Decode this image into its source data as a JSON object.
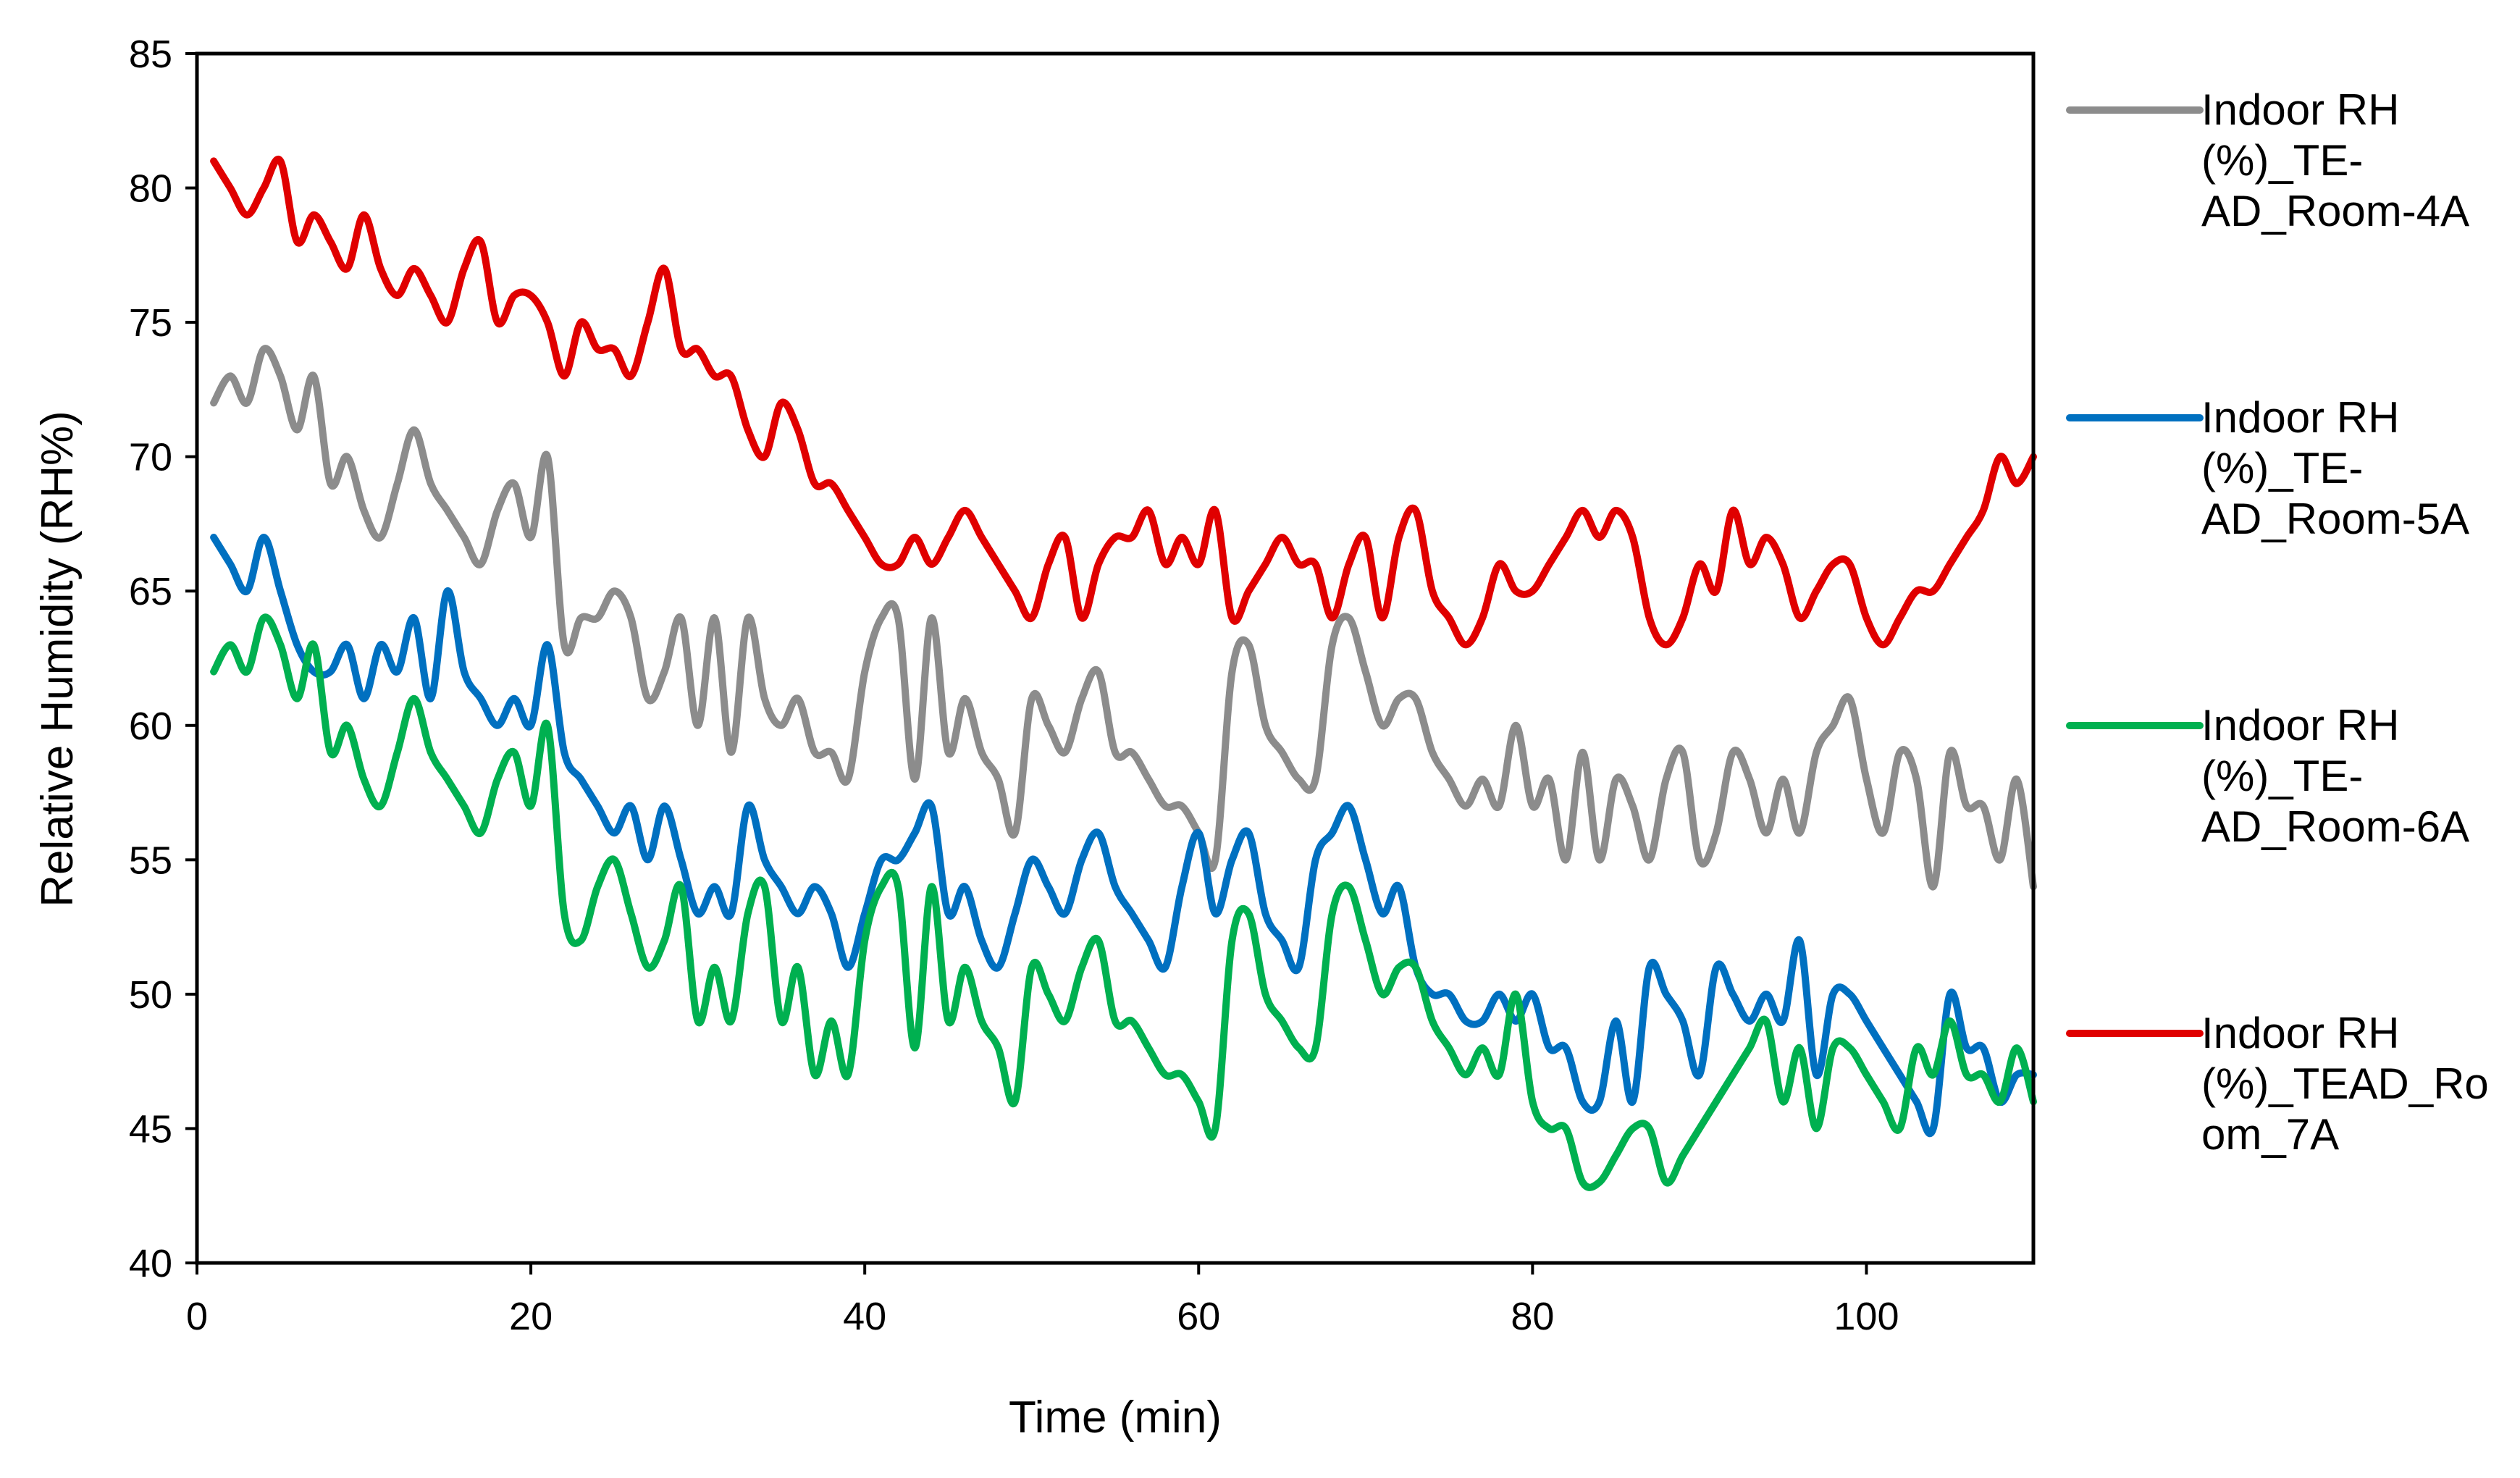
{
  "chart_data": {
    "type": "line",
    "title": "",
    "xlabel": "Time (min)",
    "ylabel": "Relative Humidity (RH%)",
    "xlim": [
      0,
      110
    ],
    "ylim": [
      40,
      85
    ],
    "x_ticks": [
      "0",
      "20",
      "40",
      "60",
      "80",
      "100"
    ],
    "y_ticks": [
      "40",
      "45",
      "50",
      "55",
      "60",
      "65",
      "70",
      "75",
      "80",
      "85"
    ],
    "grid": false,
    "legend_position": "right",
    "series": [
      {
        "name": "Indoor RH (%)_TE-AD_Room-4A",
        "legend_lines": [
          "Indoor RH",
          "(%)_TE-",
          "AD_Room-4A"
        ],
        "color": "#8c8c8c",
        "x": [
          1,
          2,
          3,
          4,
          5,
          6,
          7,
          8,
          9,
          10,
          11,
          12,
          13,
          14,
          15,
          16,
          17,
          18,
          19,
          20,
          21,
          22,
          23,
          24,
          25,
          26,
          27,
          28,
          29,
          30,
          31,
          32,
          33,
          34,
          35,
          36,
          37,
          38,
          39,
          40,
          41,
          42,
          43,
          44,
          45,
          46,
          47,
          48,
          49,
          50,
          51,
          52,
          53,
          54,
          55,
          56,
          57,
          58,
          59,
          60,
          61,
          62,
          63,
          64,
          65,
          66,
          67,
          68,
          69,
          70,
          71,
          72,
          73,
          74,
          75,
          76,
          77,
          78,
          79,
          80,
          81,
          82,
          83,
          84,
          85,
          86,
          87,
          88,
          89,
          90,
          91,
          92,
          93,
          94,
          95,
          96,
          97,
          98,
          99,
          100,
          101,
          102,
          103,
          104,
          105,
          106,
          107,
          108,
          109,
          110
        ],
        "y": [
          72,
          73,
          72,
          74,
          73,
          71,
          73,
          69,
          70,
          68,
          67,
          69,
          71,
          69,
          68,
          67,
          66,
          68,
          69,
          67,
          70,
          63,
          64,
          64,
          65,
          64,
          61,
          62,
          64,
          60,
          64,
          59,
          64,
          61,
          60,
          61,
          59,
          59,
          58,
          62,
          64,
          64,
          58,
          64,
          59,
          61,
          59,
          58,
          56,
          61,
          60,
          59,
          61,
          62,
          59,
          59,
          58,
          57,
          57,
          56,
          55,
          62,
          63,
          60,
          59,
          58,
          58,
          63,
          64,
          62,
          60,
          61,
          61,
          59,
          58,
          57,
          58,
          57,
          60,
          57,
          58,
          55,
          59,
          55,
          58,
          57,
          55,
          58,
          59,
          55,
          56,
          59,
          58,
          56,
          58,
          56,
          59,
          60,
          61,
          58,
          56,
          59,
          58,
          54,
          59,
          57,
          57,
          55,
          58,
          54
        ]
      },
      {
        "name": "Indoor RH (%)_TE-AD_Room-5A",
        "legend_lines": [
          "Indoor RH",
          "(%)_TE-",
          "AD_Room-5A"
        ],
        "color": "#0070c0",
        "x": [
          1,
          2,
          3,
          4,
          5,
          6,
          7,
          8,
          9,
          10,
          11,
          12,
          13,
          14,
          15,
          16,
          17,
          18,
          19,
          20,
          21,
          22,
          23,
          24,
          25,
          26,
          27,
          28,
          29,
          30,
          31,
          32,
          33,
          34,
          35,
          36,
          37,
          38,
          39,
          40,
          41,
          42,
          43,
          44,
          45,
          46,
          47,
          48,
          49,
          50,
          51,
          52,
          53,
          54,
          55,
          56,
          57,
          58,
          59,
          60,
          61,
          62,
          63,
          64,
          65,
          66,
          67,
          68,
          69,
          70,
          71,
          72,
          73,
          74,
          75,
          76,
          77,
          78,
          79,
          80,
          81,
          82,
          83,
          84,
          85,
          86,
          87,
          88,
          89,
          90,
          91,
          92,
          93,
          94,
          95,
          96,
          97,
          98,
          99,
          100,
          101,
          102,
          103,
          104,
          105,
          106,
          107,
          108,
          109,
          110
        ],
        "y": [
          67,
          66,
          65,
          67,
          65,
          63,
          62,
          62,
          63,
          61,
          63,
          62,
          64,
          61,
          65,
          62,
          61,
          60,
          61,
          60,
          63,
          59,
          58,
          57,
          56,
          57,
          55,
          57,
          55,
          53,
          54,
          53,
          57,
          55,
          54,
          53,
          54,
          53,
          51,
          53,
          55,
          55,
          56,
          57,
          53,
          54,
          52,
          51,
          53,
          55,
          54,
          53,
          55,
          56,
          54,
          53,
          52,
          51,
          54,
          56,
          53,
          55,
          56,
          53,
          52,
          51,
          55,
          56,
          57,
          55,
          53,
          54,
          51,
          50,
          50,
          49,
          49,
          50,
          49,
          50,
          48,
          48,
          46,
          46,
          49,
          46,
          51,
          50,
          49,
          47,
          51,
          50,
          49,
          50,
          49,
          52,
          47,
          50,
          50,
          49,
          48,
          47,
          46,
          45,
          50,
          48,
          48,
          46,
          47,
          47
        ]
      },
      {
        "name": "Indoor RH (%)_TE-AD_Room-6A",
        "legend_lines": [
          "Indoor RH",
          "(%)_TE-",
          "AD_Room-6A"
        ],
        "color": "#00b050",
        "x": [
          1,
          2,
          3,
          4,
          5,
          6,
          7,
          8,
          9,
          10,
          11,
          12,
          13,
          14,
          15,
          16,
          17,
          18,
          19,
          20,
          21,
          22,
          23,
          24,
          25,
          26,
          27,
          28,
          29,
          30,
          31,
          32,
          33,
          34,
          35,
          36,
          37,
          38,
          39,
          40,
          41,
          42,
          43,
          44,
          45,
          46,
          47,
          48,
          49,
          50,
          51,
          52,
          53,
          54,
          55,
          56,
          57,
          58,
          59,
          60,
          61,
          62,
          63,
          64,
          65,
          66,
          67,
          68,
          69,
          70,
          71,
          72,
          73,
          74,
          75,
          76,
          77,
          78,
          79,
          80,
          81,
          82,
          83,
          84,
          85,
          86,
          87,
          88,
          89,
          90,
          91,
          92,
          93,
          94,
          95,
          96,
          97,
          98,
          99,
          100,
          101,
          102,
          103,
          104,
          105,
          106,
          107,
          108,
          109,
          110
        ],
        "y": [
          62,
          63,
          62,
          64,
          63,
          61,
          63,
          59,
          60,
          58,
          57,
          59,
          61,
          59,
          58,
          57,
          56,
          58,
          59,
          57,
          60,
          53,
          52,
          54,
          55,
          53,
          51,
          52,
          54,
          49,
          51,
          49,
          53,
          54,
          49,
          51,
          47,
          49,
          47,
          52,
          54,
          54,
          48,
          54,
          49,
          51,
          49,
          48,
          46,
          51,
          50,
          49,
          51,
          52,
          49,
          49,
          48,
          47,
          47,
          46,
          45,
          52,
          53,
          50,
          49,
          48,
          48,
          53,
          54,
          52,
          50,
          51,
          51,
          49,
          48,
          47,
          48,
          47,
          50,
          46,
          45,
          45,
          43,
          43,
          44,
          45,
          45,
          43,
          44,
          45,
          46,
          47,
          48,
          49,
          46,
          48,
          45,
          48,
          48,
          47,
          46,
          45,
          48,
          47,
          49,
          47,
          47,
          46,
          48,
          46
        ]
      },
      {
        "name": "Indoor RH (%)_TEAD_Room_7A",
        "legend_lines": [
          "Indoor RH",
          "(%)_TEAD_Ro",
          "om_7A"
        ],
        "color": "#e00000",
        "x": [
          1,
          2,
          3,
          4,
          5,
          6,
          7,
          8,
          9,
          10,
          11,
          12,
          13,
          14,
          15,
          16,
          17,
          18,
          19,
          20,
          21,
          22,
          23,
          24,
          25,
          26,
          27,
          28,
          29,
          30,
          31,
          32,
          33,
          34,
          35,
          36,
          37,
          38,
          39,
          40,
          41,
          42,
          43,
          44,
          45,
          46,
          47,
          48,
          49,
          50,
          51,
          52,
          53,
          54,
          55,
          56,
          57,
          58,
          59,
          60,
          61,
          62,
          63,
          64,
          65,
          66,
          67,
          68,
          69,
          70,
          71,
          72,
          73,
          74,
          75,
          76,
          77,
          78,
          79,
          80,
          81,
          82,
          83,
          84,
          85,
          86,
          87,
          88,
          89,
          90,
          91,
          92,
          93,
          94,
          95,
          96,
          97,
          98,
          99,
          100,
          101,
          102,
          103,
          104,
          105,
          106,
          107,
          108,
          109,
          110
        ],
        "y": [
          81,
          80,
          79,
          80,
          81,
          78,
          79,
          78,
          77,
          79,
          77,
          76,
          77,
          76,
          75,
          77,
          78,
          75,
          76,
          76,
          75,
          73,
          75,
          74,
          74,
          73,
          75,
          77,
          74,
          74,
          73,
          73,
          71,
          70,
          72,
          71,
          69,
          69,
          68,
          67,
          66,
          66,
          67,
          66,
          67,
          68,
          67,
          66,
          65,
          64,
          66,
          67,
          64,
          66,
          67,
          67,
          68,
          66,
          67,
          66,
          68,
          64,
          65,
          66,
          67,
          66,
          66,
          64,
          66,
          67,
          64,
          67,
          68,
          65,
          64,
          63,
          64,
          66,
          65,
          65,
          66,
          67,
          68,
          67,
          68,
          67,
          64,
          63,
          64,
          66,
          65,
          68,
          66,
          67,
          66,
          64,
          65,
          66,
          66,
          64,
          63,
          64,
          65,
          65,
          66,
          67,
          68,
          70,
          69,
          70
        ]
      }
    ]
  }
}
